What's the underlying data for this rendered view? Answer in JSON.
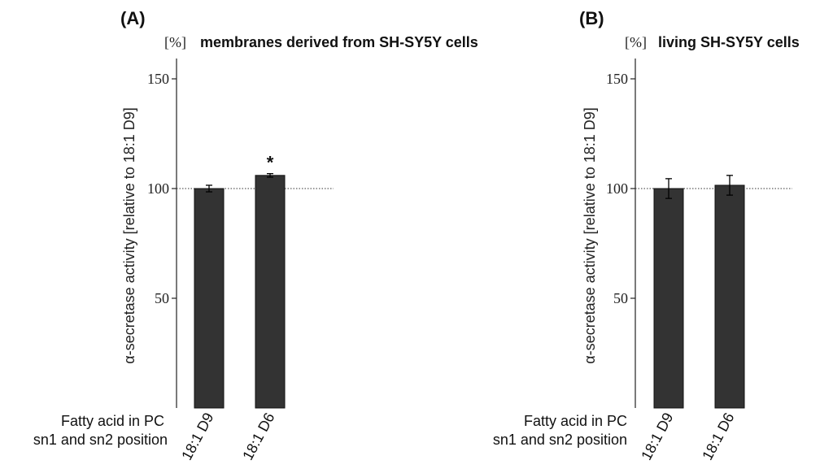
{
  "x_caption": [
    "Fatty acid in PC",
    "sn1 and sn2 position"
  ],
  "chart_data": [
    {
      "type": "bar",
      "panel": "(A)",
      "unit": "[%]",
      "title": "membranes derived from SH-SY5Y cells",
      "ylabel": "α-secretase activity [relative to 18:1 D9]",
      "categories": [
        "18:1 D9",
        "18:1 D6"
      ],
      "values": [
        100,
        106
      ],
      "errors": [
        1.5,
        0.8
      ],
      "annotations": [
        "",
        "*"
      ],
      "reference_line": 100,
      "yticks": [
        50,
        100,
        150
      ],
      "ylim": [
        0,
        160
      ],
      "bar_color": "#333333",
      "grid": false
    },
    {
      "type": "bar",
      "panel": "(B)",
      "unit": "[%]",
      "title": "living SH-SY5Y cells",
      "ylabel": "α-secretase activity [relative to 18:1 D9]",
      "categories": [
        "18:1 D9",
        "18:1 D6"
      ],
      "values": [
        100,
        101.5
      ],
      "errors": [
        4.5,
        4.5
      ],
      "annotations": [
        "",
        ""
      ],
      "reference_line": 100,
      "yticks": [
        50,
        100,
        150
      ],
      "ylim": [
        0,
        160
      ],
      "bar_color": "#333333",
      "grid": false
    }
  ]
}
